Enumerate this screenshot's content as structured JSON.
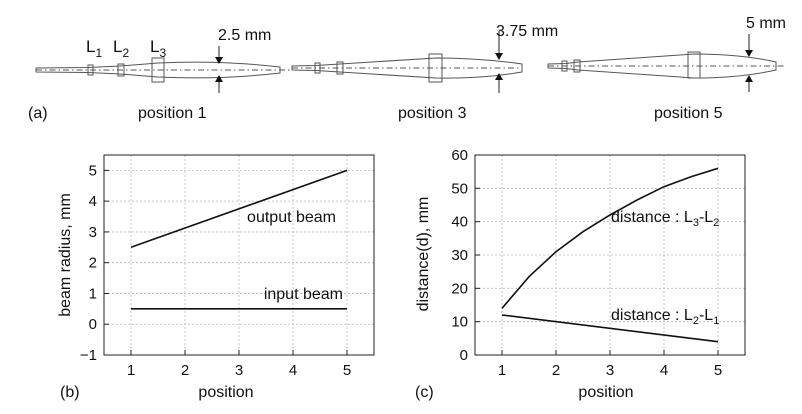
{
  "panel_a": {
    "tag": "(a)",
    "lens_labels": [
      "L",
      "1",
      "L",
      "2",
      "L",
      "3"
    ],
    "positions": [
      {
        "label": "position 1",
        "radius_label": "2.5 mm"
      },
      {
        "label": "position 3",
        "radius_label": "3.75 mm"
      },
      {
        "label": "position 5",
        "radius_label": "5 mm"
      }
    ]
  },
  "chart_data": [
    {
      "type": "line",
      "panel": "(b)",
      "xlabel": "position",
      "ylabel": "beam radius, mm",
      "xlim": [
        0.5,
        5.5
      ],
      "ylim": [
        -1,
        5.5
      ],
      "xticks": [
        1,
        2,
        3,
        4,
        5
      ],
      "yticks": [
        -1,
        0,
        1,
        2,
        3,
        4,
        5
      ],
      "ytick_labels": [
        "−1",
        "0",
        "1",
        "2",
        "3",
        "4",
        "5"
      ],
      "grid": true,
      "series": [
        {
          "name": "output beam",
          "x": [
            1,
            5
          ],
          "values": [
            2.5,
            5
          ]
        },
        {
          "name": "input beam",
          "x": [
            1,
            5
          ],
          "values": [
            0.5,
            0.5
          ]
        }
      ]
    },
    {
      "type": "line",
      "panel": "(c)",
      "xlabel": "position",
      "ylabel": "distance(d), mm",
      "xlim": [
        0.5,
        5.5
      ],
      "ylim": [
        0,
        60
      ],
      "xticks": [
        1,
        2,
        3,
        4,
        5
      ],
      "yticks": [
        0,
        10,
        20,
        30,
        40,
        50,
        60
      ],
      "ytick_labels": [
        "0",
        "10",
        "20",
        "30",
        "40",
        "50",
        "60"
      ],
      "grid": true,
      "series": [
        {
          "name": "distance : L3-L2",
          "name_parts": [
            "distance : L",
            "3",
            "-L",
            "2"
          ],
          "x": [
            1,
            1.5,
            2,
            2.5,
            3,
            3.5,
            4,
            4.5,
            5
          ],
          "values": [
            14,
            23.5,
            31,
            37,
            42,
            46.5,
            50.5,
            53.5,
            56
          ]
        },
        {
          "name": "distance : L2-L1",
          "name_parts": [
            "distance : L",
            "2",
            "-L",
            "1"
          ],
          "x": [
            1,
            5
          ],
          "values": [
            12,
            4
          ]
        }
      ]
    }
  ]
}
